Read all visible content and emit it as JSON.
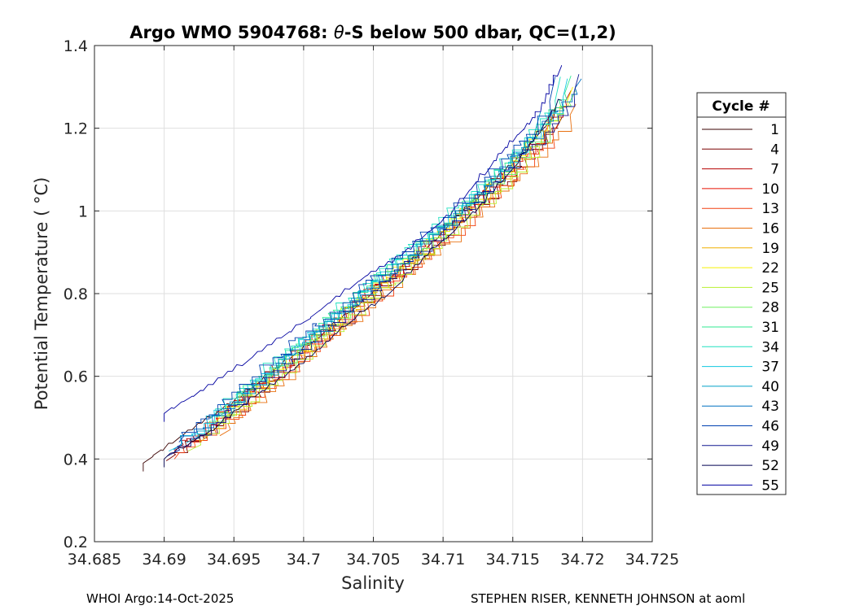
{
  "chart_data": {
    "type": "line",
    "title_prefix": "Argo WMO 5904768: ",
    "title_symbol": "θ",
    "title_suffix": "-S below 500 dbar,  QC=(1,2)",
    "xlabel": "Salinity",
    "ylabel": "Potential Temperature ( °C)",
    "xlim": [
      34.685,
      34.725
    ],
    "ylim": [
      0.2,
      1.4
    ],
    "xticks": [
      34.685,
      34.69,
      34.695,
      34.7,
      34.705,
      34.71,
      34.715,
      34.72,
      34.725
    ],
    "xtick_labels": [
      "34.685",
      "34.69",
      "34.695",
      "34.7",
      "34.705",
      "34.71",
      "34.715",
      "34.72",
      "34.725"
    ],
    "yticks": [
      0.2,
      0.4,
      0.6,
      0.8,
      1.0,
      1.2,
      1.4
    ],
    "ytick_labels": [
      "0.2",
      "0.4",
      "0.6",
      "0.8",
      "1",
      "1.2",
      "1.4"
    ],
    "grid": true,
    "legend": {
      "title": "Cycle #",
      "placement": "outside-right",
      "entries": [
        {
          "label": "1",
          "color": "#3a0000"
        },
        {
          "label": "4",
          "color": "#7a0000"
        },
        {
          "label": "7",
          "color": "#b40000"
        },
        {
          "label": "10",
          "color": "#e61000"
        },
        {
          "label": "13",
          "color": "#f24010"
        },
        {
          "label": "16",
          "color": "#e87010"
        },
        {
          "label": "19",
          "color": "#f0b000"
        },
        {
          "label": "22",
          "color": "#f5f000"
        },
        {
          "label": "25",
          "color": "#b8f030"
        },
        {
          "label": "28",
          "color": "#70f060"
        },
        {
          "label": "31",
          "color": "#30e890"
        },
        {
          "label": "34",
          "color": "#20e0c0"
        },
        {
          "label": "37",
          "color": "#10c8e0"
        },
        {
          "label": "40",
          "color": "#00a0c8"
        },
        {
          "label": "43",
          "color": "#0070c0"
        },
        {
          "label": "46",
          "color": "#0040b0"
        },
        {
          "label": "49",
          "color": "#101890"
        },
        {
          "label": "52",
          "color": "#000050"
        },
        {
          "label": "55",
          "color": "#0000a0"
        }
      ]
    },
    "mean_profile": {
      "salinity": [
        34.6895,
        34.6925,
        34.695,
        34.6975,
        34.7,
        34.7025,
        34.705,
        34.7075,
        34.71,
        34.7125,
        34.715,
        34.7175,
        34.7195
      ],
      "theta": [
        0.41,
        0.46,
        0.53,
        0.6,
        0.67,
        0.74,
        0.81,
        0.88,
        0.95,
        1.03,
        1.11,
        1.2,
        1.28
      ]
    },
    "series": [
      {
        "name": "1",
        "salinity": [
          34.6885,
          34.692,
          34.6955,
          34.699,
          34.7025,
          34.706,
          34.7095,
          34.7125,
          34.7155,
          34.7185
        ],
        "theta": [
          0.39,
          0.47,
          0.55,
          0.64,
          0.73,
          0.83,
          0.93,
          1.03,
          1.13,
          1.25
        ]
      },
      {
        "name": "52",
        "salinity": [
          34.69,
          34.6935,
          34.6965,
          34.7,
          34.703,
          34.7065,
          34.7095,
          34.713,
          34.716,
          34.7185
        ],
        "theta": [
          0.4,
          0.47,
          0.55,
          0.63,
          0.72,
          0.81,
          0.91,
          1.02,
          1.14,
          1.27
        ]
      },
      {
        "name": "55",
        "salinity": [
          34.69,
          34.6935,
          34.697,
          34.7005,
          34.704,
          34.707,
          34.7105,
          34.713,
          34.715,
          34.717,
          34.7185
        ],
        "theta": [
          0.51,
          0.58,
          0.66,
          0.74,
          0.83,
          0.89,
          0.99,
          1.09,
          1.17,
          1.24,
          1.35
        ]
      }
    ]
  },
  "footer": {
    "left": "WHOI Argo:14-Oct-2025",
    "right": "STEPHEN RISER, KENNETH JOHNSON at aoml"
  }
}
